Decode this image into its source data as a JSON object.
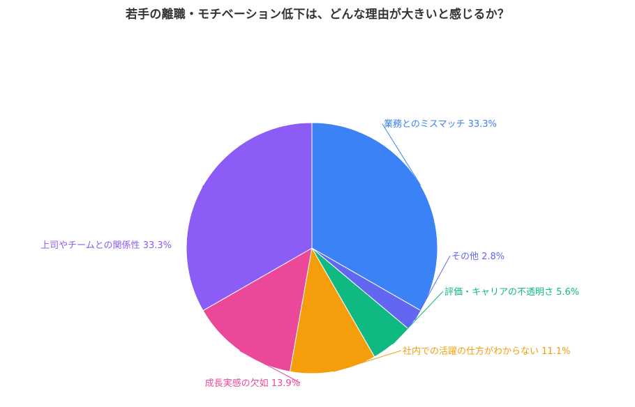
{
  "chart_data": {
    "type": "pie",
    "title": "若手の離職・モチベーション低下は、どんな理由が大きいと感じるか？",
    "slices": [
      {
        "label": "業務とのミスマッチ",
        "value": 33.3,
        "percent_text": "33.3%",
        "color": "#3b82f6"
      },
      {
        "label": "その他",
        "value": 2.8,
        "percent_text": "2.8%",
        "color": "#6366f1"
      },
      {
        "label": "評価・キャリアの不透明さ",
        "value": 5.6,
        "percent_text": "5.6%",
        "color": "#10b981"
      },
      {
        "label": "社内での活躍の仕方がわからない",
        "value": 11.1,
        "percent_text": "11.1%",
        "color": "#f59e0b"
      },
      {
        "label": "成長実感の欠如",
        "value": 13.9,
        "percent_text": "13.9%",
        "color": "#ec4899"
      },
      {
        "label": "上司やチームとの関係性",
        "value": 33.3,
        "percent_text": "33.3%",
        "color": "#8b5cf6"
      }
    ],
    "start_angle": "12 o'clock",
    "direction": "clockwise",
    "legend": "none (labels beside slices)"
  }
}
